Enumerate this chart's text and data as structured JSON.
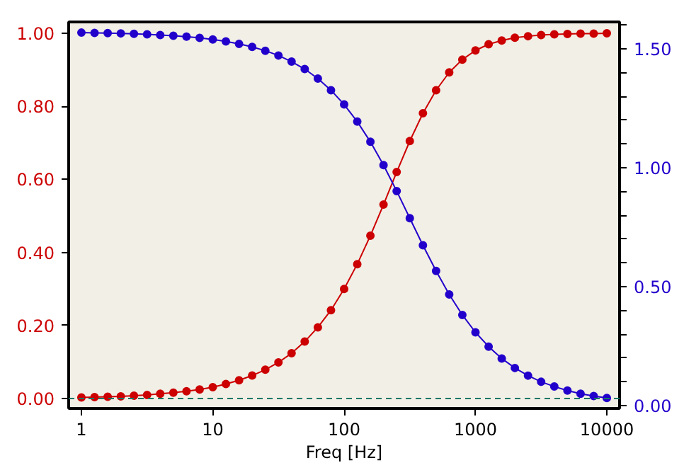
{
  "chart_data": {
    "type": "line",
    "xlabel": "Freq [Hz]",
    "log": "x",
    "marker": "circle",
    "line_style": "solid",
    "grid": false,
    "x": [
      1,
      1.259,
      1.585,
      1.995,
      2.512,
      3.162,
      3.981,
      5.012,
      6.31,
      7.943,
      10,
      12.59,
      15.85,
      19.95,
      25.12,
      31.62,
      39.81,
      50.12,
      63.1,
      79.43,
      100,
      125.9,
      158.5,
      199.5,
      251.2,
      316.2,
      398.1,
      501.2,
      631,
      794.3,
      1000,
      1259,
      1585,
      1995,
      2512,
      3162,
      3981,
      5012,
      6310,
      7943,
      10000
    ],
    "xlim": [
      0.8,
      12500
    ],
    "xticks": [
      1,
      10,
      100,
      1000,
      10000
    ],
    "ylim": [
      -0.027,
      1.031
    ],
    "yticks": [
      {
        "value": 0,
        "label": "0.00"
      },
      {
        "value": 0.2,
        "label": "0.20"
      },
      {
        "value": 0.4,
        "label": "0.40"
      },
      {
        "value": 0.6,
        "label": "0.60"
      },
      {
        "value": 0.8,
        "label": "0.80"
      },
      {
        "value": 1,
        "label": "1.00"
      }
    ],
    "y2lim": [
      -0.012,
      1.613
    ],
    "y2ticks": [
      {
        "value": 0,
        "label": "0.00"
      },
      {
        "value": 0.1,
        "label": null
      },
      {
        "value": 0.2,
        "label": null
      },
      {
        "value": 0.3,
        "label": null
      },
      {
        "value": 0.4,
        "label": null
      },
      {
        "value": 0.5,
        "label": "0.50"
      },
      {
        "value": 0.6,
        "label": null
      },
      {
        "value": 0.7,
        "label": null
      },
      {
        "value": 0.8,
        "label": null
      },
      {
        "value": 0.9,
        "label": null
      },
      {
        "value": 1,
        "label": "1.00"
      },
      {
        "value": 1.1,
        "label": null
      },
      {
        "value": 1.2,
        "label": null
      },
      {
        "value": 1.3,
        "label": null
      },
      {
        "value": 1.4,
        "label": null
      },
      {
        "value": 1.5,
        "label": "1.50"
      },
      {
        "value": 1.6,
        "label": null
      }
    ],
    "series": [
      {
        "color": "#cc0000",
        "axis": "y",
        "values": [
          0.003,
          0.004,
          0.005,
          0.006,
          0.008,
          0.01,
          0.013,
          0.016,
          0.02,
          0.025,
          0.031,
          0.04,
          0.05,
          0.063,
          0.079,
          0.099,
          0.124,
          0.156,
          0.195,
          0.242,
          0.3,
          0.368,
          0.446,
          0.531,
          0.62,
          0.705,
          0.781,
          0.844,
          0.893,
          0.928,
          0.953,
          0.97,
          0.98,
          0.988,
          0.992,
          0.995,
          0.997,
          0.998,
          0.999,
          0.999,
          1.0
        ]
      },
      {
        "color": "#2200cc",
        "axis": "y2",
        "values": [
          1.568,
          1.567,
          1.566,
          1.565,
          1.563,
          1.561,
          1.558,
          1.555,
          1.551,
          1.546,
          1.539,
          1.531,
          1.521,
          1.508,
          1.492,
          1.472,
          1.446,
          1.415,
          1.375,
          1.326,
          1.266,
          1.194,
          1.109,
          1.011,
          0.902,
          0.788,
          0.674,
          0.566,
          0.467,
          0.381,
          0.308,
          0.248,
          0.198,
          0.158,
          0.126,
          0.1,
          0.08,
          0.063,
          0.05,
          0.04,
          0.032
        ]
      }
    ],
    "ref_lines": [
      {
        "axis": "y",
        "value": 0,
        "color": "#117766",
        "line_style": "dashed"
      }
    ]
  }
}
